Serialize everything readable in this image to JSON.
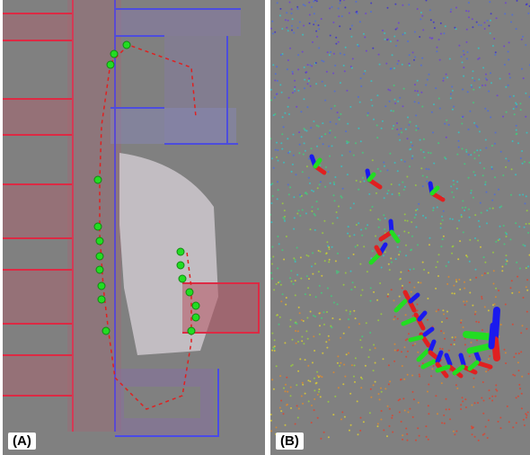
{
  "panels": [
    {
      "id": "A",
      "label": "(A)"
    },
    {
      "id": "B",
      "label": "(B)"
    }
  ],
  "colors": {
    "background": "#808080",
    "map_red": "#e0283a",
    "map_blue": "#4a4ae8",
    "map_white": "#f2eef2",
    "pose_green": "#22dd22",
    "axis_red": "#e02020",
    "axis_blue": "#1a1aee"
  }
}
